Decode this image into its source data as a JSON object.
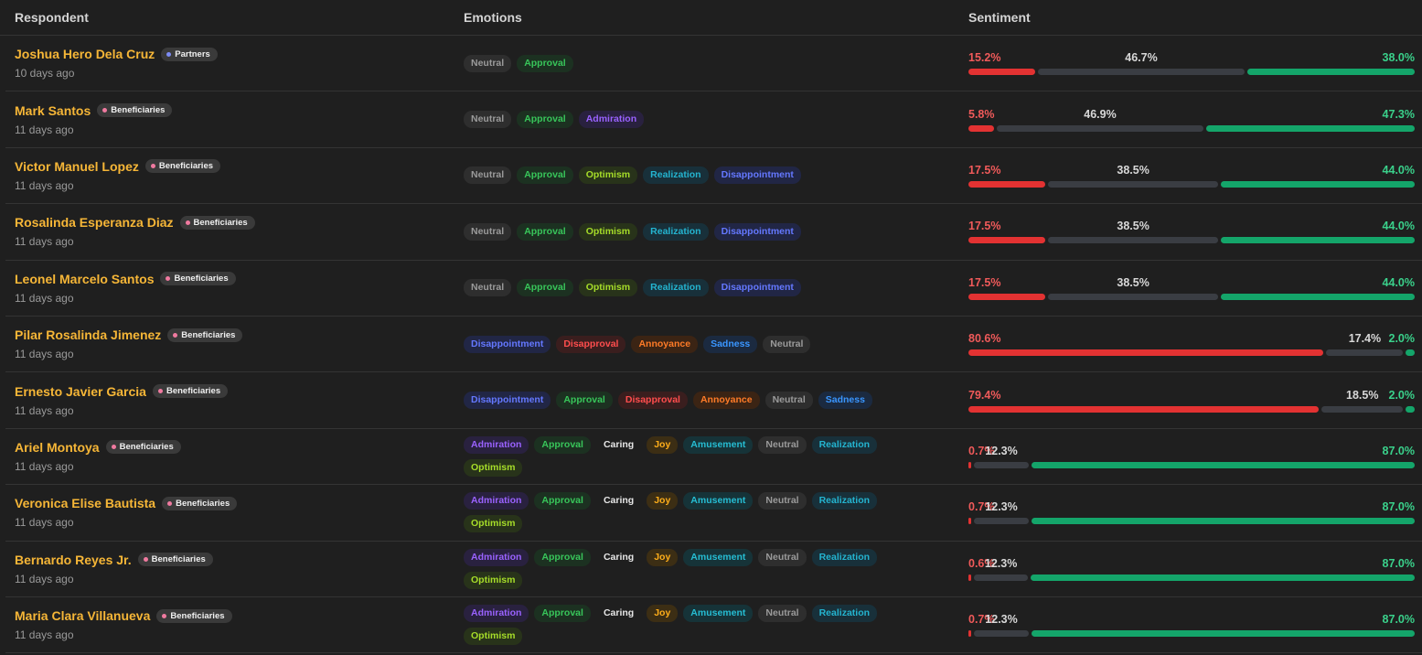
{
  "headers": {
    "respondent": "Respondent",
    "emotions": "Emotions",
    "sentiment": "Sentiment"
  },
  "colors": {
    "name": "#f6b637",
    "negative": "#e33232",
    "neutral": "#3a3d43",
    "positive": "#14a56a"
  },
  "rows": [
    {
      "name": "Joshua Hero Dela Cruz",
      "group": "Partners",
      "time": "10 days ago",
      "emotions": [
        "Neutral",
        "Approval"
      ],
      "sentiment": {
        "neg_label": "15.2%",
        "neu_label": "46.7%",
        "pos_label": "38.0%",
        "neg": 15.2,
        "neu": 46.7,
        "pos": 38.0
      }
    },
    {
      "name": "Mark Santos",
      "group": "Beneficiaries",
      "time": "11 days ago",
      "emotions": [
        "Neutral",
        "Approval",
        "Admiration"
      ],
      "sentiment": {
        "neg_label": "5.8%",
        "neu_label": "46.9%",
        "pos_label": "47.3%",
        "neg": 5.8,
        "neu": 46.9,
        "pos": 47.3
      }
    },
    {
      "name": "Victor Manuel Lopez",
      "group": "Beneficiaries",
      "time": "11 days ago",
      "emotions": [
        "Neutral",
        "Approval",
        "Optimism",
        "Realization",
        "Disappointment"
      ],
      "sentiment": {
        "neg_label": "17.5%",
        "neu_label": "38.5%",
        "pos_label": "44.0%",
        "neg": 17.5,
        "neu": 38.5,
        "pos": 44.0
      }
    },
    {
      "name": "Rosalinda Esperanza Diaz",
      "group": "Beneficiaries",
      "time": "11 days ago",
      "emotions": [
        "Neutral",
        "Approval",
        "Optimism",
        "Realization",
        "Disappointment"
      ],
      "sentiment": {
        "neg_label": "17.5%",
        "neu_label": "38.5%",
        "pos_label": "44.0%",
        "neg": 17.5,
        "neu": 38.5,
        "pos": 44.0
      }
    },
    {
      "name": "Leonel Marcelo Santos",
      "group": "Beneficiaries",
      "time": "11 days ago",
      "emotions": [
        "Neutral",
        "Approval",
        "Optimism",
        "Realization",
        "Disappointment"
      ],
      "sentiment": {
        "neg_label": "17.5%",
        "neu_label": "38.5%",
        "pos_label": "44.0%",
        "neg": 17.5,
        "neu": 38.5,
        "pos": 44.0
      }
    },
    {
      "name": "Pilar Rosalinda Jimenez",
      "group": "Beneficiaries",
      "time": "11 days ago",
      "emotions": [
        "Disappointment",
        "Disapproval",
        "Annoyance",
        "Sadness",
        "Neutral"
      ],
      "sentiment": {
        "neg_label": "80.6%",
        "neu_label": "17.4%",
        "pos_label": "2.0%",
        "neg": 80.6,
        "neu": 17.4,
        "pos": 2.0
      }
    },
    {
      "name": "Ernesto Javier Garcia",
      "group": "Beneficiaries",
      "time": "11 days ago",
      "emotions": [
        "Disappointment",
        "Approval",
        "Disapproval",
        "Annoyance",
        "Neutral",
        "Sadness"
      ],
      "sentiment": {
        "neg_label": "79.4%",
        "neu_label": "18.5%",
        "pos_label": "2.0%",
        "neg": 79.4,
        "neu": 18.5,
        "pos": 2.0
      }
    },
    {
      "name": "Ariel Montoya",
      "group": "Beneficiaries",
      "time": "11 days ago",
      "emotions": [
        "Admiration",
        "Approval",
        "Caring",
        "Joy",
        "Amusement",
        "Neutral",
        "Realization",
        "Optimism"
      ],
      "sentiment": {
        "neg_label": "0.7%",
        "neu_label": "12.3%",
        "pos_label": "87.0%",
        "neg": 0.7,
        "neu": 12.3,
        "pos": 87.0
      }
    },
    {
      "name": "Veronica Elise Bautista",
      "group": "Beneficiaries",
      "time": "11 days ago",
      "emotions": [
        "Admiration",
        "Approval",
        "Caring",
        "Joy",
        "Amusement",
        "Neutral",
        "Realization",
        "Optimism"
      ],
      "sentiment": {
        "neg_label": "0.7%",
        "neu_label": "12.3%",
        "pos_label": "87.0%",
        "neg": 0.7,
        "neu": 12.3,
        "pos": 87.0
      }
    },
    {
      "name": "Bernardo Reyes Jr.",
      "group": "Beneficiaries",
      "time": "11 days ago",
      "emotions": [
        "Admiration",
        "Approval",
        "Caring",
        "Joy",
        "Amusement",
        "Neutral",
        "Realization",
        "Optimism"
      ],
      "sentiment": {
        "neg_label": "0.6%",
        "neu_label": "12.3%",
        "pos_label": "87.0%",
        "neg": 0.6,
        "neu": 12.3,
        "pos": 87.0
      }
    },
    {
      "name": "Maria Clara Villanueva",
      "group": "Beneficiaries",
      "time": "11 days ago",
      "emotions": [
        "Admiration",
        "Approval",
        "Caring",
        "Joy",
        "Amusement",
        "Neutral",
        "Realization",
        "Optimism"
      ],
      "sentiment": {
        "neg_label": "0.7%",
        "neu_label": "12.3%",
        "pos_label": "87.0%",
        "neg": 0.7,
        "neu": 12.3,
        "pos": 87.0
      }
    }
  ]
}
